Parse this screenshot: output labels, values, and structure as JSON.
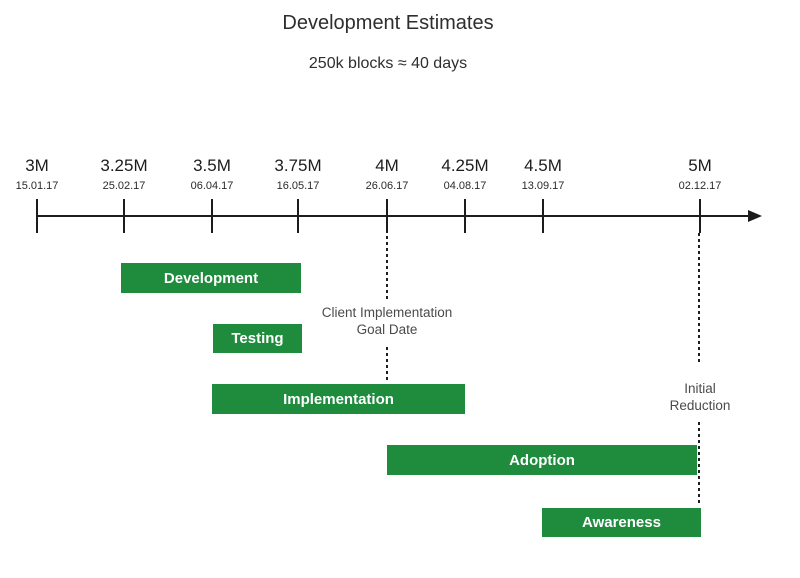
{
  "header": {
    "title": "Development Estimates",
    "subtitle": "250k blocks ≈ 40 days"
  },
  "annotations": {
    "goal_date": {
      "line1": "Client Implementation",
      "line2": "Goal Date"
    },
    "initial_reduction": {
      "line1": "Initial",
      "line2": "Reduction"
    }
  },
  "colors": {
    "bar_green": "#1e8b3d",
    "bar_text": "#ffffff",
    "axis_black": "#1c1c1c",
    "annotation_gray": "#4b4b4b"
  },
  "chart_data": {
    "type": "bar",
    "subtype": "gantt-timeline",
    "title": "Development Estimates",
    "subtitle": "250k blocks ≈ 40 days",
    "grid": false,
    "legend": false,
    "x_axis": {
      "orientation": "horizontal-arrow-right",
      "ticks": [
        {
          "label": "3M",
          "date": "15.01.17"
        },
        {
          "label": "3.25M",
          "date": "25.02.17"
        },
        {
          "label": "3.5M",
          "date": "06.04.17"
        },
        {
          "label": "3.75M",
          "date": "16.05.17"
        },
        {
          "label": "4M",
          "date": "26.06.17"
        },
        {
          "label": "4.25M",
          "date": "04.08.17"
        },
        {
          "label": "4.5M",
          "date": "13.09.17"
        },
        {
          "label": "5M",
          "date": "02.12.17"
        }
      ]
    },
    "series": [
      {
        "name": "Development",
        "start": "3.25M",
        "end": "3.75M",
        "start_date": "25.02.17",
        "end_date": "16.05.17"
      },
      {
        "name": "Testing",
        "start": "3.5M",
        "end": "3.75M",
        "start_date": "06.04.17",
        "end_date": "16.05.17"
      },
      {
        "name": "Implementation",
        "start": "3.5M",
        "end": "4.25M",
        "start_date": "06.04.17",
        "end_date": "04.08.17"
      },
      {
        "name": "Adoption",
        "start": "4M",
        "end": "5M",
        "start_date": "26.06.17",
        "end_date": "02.12.17"
      },
      {
        "name": "Awareness",
        "start": "4.5M",
        "end": "5M",
        "start_date": "13.09.17",
        "end_date": "02.12.17"
      }
    ],
    "annotations": [
      {
        "text": "Client Implementation Goal Date",
        "at": "4M",
        "date": "26.06.17"
      },
      {
        "text": "Initial Reduction",
        "at": "5M",
        "date": "02.12.17"
      }
    ]
  }
}
